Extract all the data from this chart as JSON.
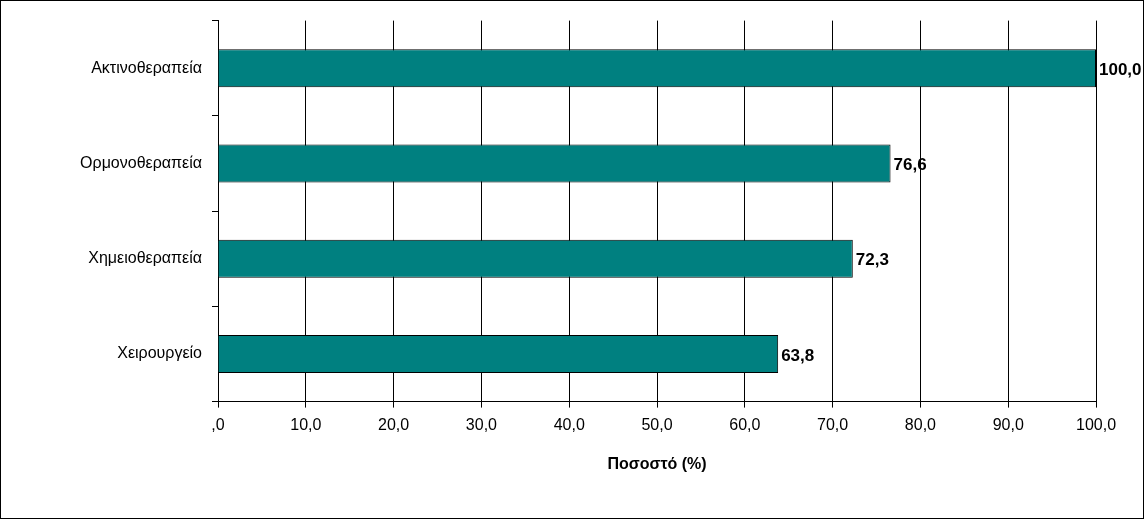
{
  "chart_data": {
    "type": "bar",
    "orientation": "horizontal",
    "xlabel": "Ποσοστό (%)",
    "categories": [
      "Ακτινοθεραπεία",
      "Ορμονοθεραπεία",
      "Χημειοθεραπεία",
      "Χειρουργείο"
    ],
    "values": [
      100.0,
      76.6,
      72.3,
      63.8
    ],
    "color": "#008080",
    "value_labels": [
      "100,0",
      "76,6",
      "72,3",
      "63,8"
    ],
    "xlim": [
      0,
      100
    ],
    "xticks": [
      {
        "value": 0,
        "label": ",0"
      },
      {
        "value": 10,
        "label": "10,0"
      },
      {
        "value": 20,
        "label": "20,0"
      },
      {
        "value": 30,
        "label": "30,0"
      },
      {
        "value": 40,
        "label": "40,0"
      },
      {
        "value": 50,
        "label": "50,0"
      },
      {
        "value": 60,
        "label": "60,0"
      },
      {
        "value": 70,
        "label": "70,0"
      },
      {
        "value": 80,
        "label": "80,0"
      },
      {
        "value": 90,
        "label": "90,0"
      },
      {
        "value": 100,
        "label": "100,0"
      }
    ],
    "grid": "x",
    "legend": false
  }
}
